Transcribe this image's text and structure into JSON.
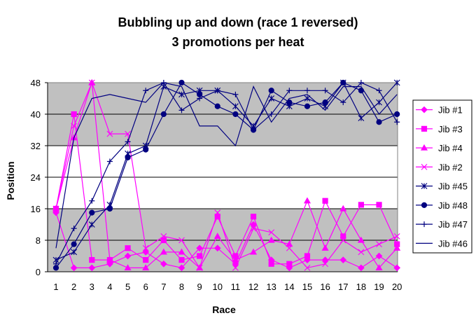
{
  "chart_data": {
    "type": "line",
    "title_line1": "Bubbling up and down (race 1 reversed)",
    "title_line2": "3 promotions per heat",
    "xlabel": "Race",
    "ylabel": "Position",
    "xlim": [
      1,
      20
    ],
    "ylim": [
      0,
      48
    ],
    "yticks": [
      0,
      8,
      16,
      24,
      32,
      40,
      48
    ],
    "xticks": [
      1,
      2,
      3,
      4,
      5,
      6,
      7,
      8,
      9,
      10,
      11,
      12,
      13,
      14,
      15,
      16,
      17,
      18,
      19,
      20
    ],
    "bands": [
      {
        "from": 0,
        "to": 16,
        "color": "#c0c0c0"
      },
      {
        "from": 16,
        "to": 32,
        "color": "#ffffff"
      },
      {
        "from": 32,
        "to": 48,
        "color": "#c0c0c0"
      }
    ],
    "grid": true,
    "legend_position": "right",
    "series": [
      {
        "name": "Jib #1",
        "color": "#ff00ff",
        "marker": "diamond",
        "values": [
          15,
          1,
          1,
          2,
          4,
          5,
          2,
          1,
          6,
          6,
          2,
          12,
          3,
          1,
          3,
          3,
          3,
          1,
          4,
          1
        ]
      },
      {
        "name": "Jib #3",
        "color": "#ff00ff",
        "marker": "square",
        "values": [
          16,
          40,
          3,
          3,
          6,
          3,
          8,
          3,
          4,
          14,
          4,
          14,
          2,
          2,
          4,
          18,
          9,
          17,
          17,
          7
        ]
      },
      {
        "name": "Jib #4",
        "color": "#ff00ff",
        "marker": "triangle",
        "values": [
          16,
          34,
          48,
          3,
          1,
          1,
          5,
          5,
          1,
          9,
          3,
          5,
          8,
          7,
          18,
          6,
          16,
          8,
          1,
          6
        ]
      },
      {
        "name": "Jib #2",
        "color": "#ff00ff",
        "marker": "x",
        "values": [
          16,
          37,
          48,
          35,
          35,
          6,
          9,
          8,
          1,
          15,
          1,
          11,
          10,
          6,
          1,
          2,
          8,
          5,
          7,
          9
        ]
      },
      {
        "name": "Jib #45",
        "color": "#000080",
        "marker": "asterisk",
        "values": [
          3,
          5,
          12,
          17,
          30,
          32,
          47,
          45,
          46,
          46,
          42,
          37,
          44,
          42,
          44,
          42,
          48,
          39,
          43,
          48
        ]
      },
      {
        "name": "Jib #48",
        "color": "#000080",
        "marker": "circle",
        "values": [
          1,
          7,
          15,
          16,
          29,
          31,
          40,
          48,
          45,
          42,
          40,
          36,
          46,
          43,
          42,
          43,
          48,
          46,
          38,
          40
        ]
      },
      {
        "name": "Jib #47",
        "color": "#000080",
        "marker": "plus",
        "values": [
          2,
          11,
          18,
          28,
          33,
          46,
          48,
          41,
          44,
          46,
          45,
          36,
          40,
          46,
          46,
          46,
          43,
          48,
          46,
          38
        ]
      },
      {
        "name": "Jib #46",
        "color": "#000080",
        "marker": "dash",
        "values": [
          6,
          34,
          44,
          45,
          44,
          43,
          48,
          47,
          37,
          37,
          32,
          47,
          38,
          44,
          45,
          41,
          47,
          47,
          40,
          45
        ]
      }
    ]
  }
}
